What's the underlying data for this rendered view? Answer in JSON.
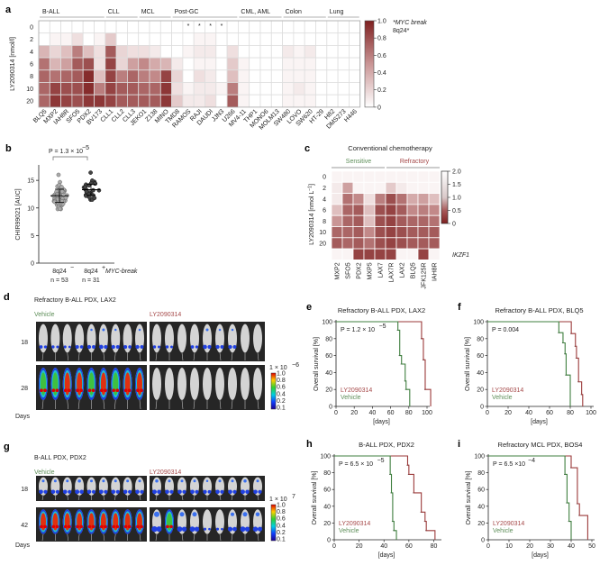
{
  "panel_labels": {
    "a": "a",
    "b": "b",
    "c": "c",
    "d": "d",
    "e": "e",
    "f": "f",
    "g": "g",
    "h": "h",
    "i": "i"
  },
  "colors": {
    "heat_high": "#7e2020",
    "drug": "#9b3a3a",
    "vehicle": "#3f7f3f",
    "sensitive_label": "#5f8f5a",
    "refractory_label": "#a54848"
  },
  "chart_data": [
    {
      "type": "heatmap",
      "ylabel": "LY2090314 [nmol/l]",
      "rows": [
        "0",
        "2",
        "4",
        "6",
        "8",
        "10",
        "20"
      ],
      "columns": [
        "BLQ5",
        "MXP2",
        "IAH8R",
        "SFO5",
        "PDX2",
        "BV173",
        "CLL1",
        "CLL2",
        "CLL3",
        "JEKO1",
        "Z138",
        "MINO",
        "TMD8",
        "RAMOS",
        "RAJI",
        "DAUDI",
        "JJN3",
        "U266",
        "MV4-11",
        "THP1",
        "MONO6",
        "MOLM13",
        "SW480",
        "LOVO",
        "SW620",
        "HT-29",
        "H82",
        "DMS273",
        "H446"
      ],
      "groups": [
        {
          "name": "B-ALL",
          "start": 0,
          "end": 5
        },
        {
          "name": "CLL",
          "start": 6,
          "end": 8
        },
        {
          "name": "MCL",
          "start": 9,
          "end": 11
        },
        {
          "name": "Post-GC",
          "start": 12,
          "end": 17
        },
        {
          "name": "CML, AML",
          "start": 18,
          "end": 21
        },
        {
          "name": "Colon",
          "start": 22,
          "end": 25
        },
        {
          "name": "Lung",
          "start": 26,
          "end": 28
        }
      ],
      "star_marker": "*",
      "starred_columns": [
        13,
        14,
        15,
        16
      ],
      "star_note": "*MYC break",
      "star_note2": "8q24*",
      "colorbar": {
        "min": 0,
        "max": 1,
        "ticks": [
          "1.0",
          "0.8",
          "0.6",
          "0.4",
          "0.2",
          "0"
        ]
      },
      "values_by_column": [
        [
          0,
          0,
          0.35,
          0.65,
          0.7,
          0.7,
          0.7
        ],
        [
          0,
          0.05,
          0.2,
          0.35,
          0.65,
          0.85,
          0.9
        ],
        [
          0,
          0.05,
          0.3,
          0.45,
          0.7,
          0.8,
          0.85
        ],
        [
          0,
          0.15,
          0.6,
          0.75,
          0.75,
          0.8,
          0.8
        ],
        [
          0,
          0,
          0.3,
          0.8,
          0.95,
          0.95,
          0.9
        ],
        [
          0,
          0.05,
          0.15,
          0.15,
          0.3,
          0.6,
          0.9
        ],
        [
          0,
          0.25,
          0.75,
          0.85,
          0.85,
          0.85,
          0.85
        ],
        [
          0,
          0,
          0.2,
          0.2,
          0.6,
          0.75,
          0.75
        ],
        [
          0,
          0,
          0.15,
          0.45,
          0.7,
          0.75,
          0.75
        ],
        [
          0,
          0,
          0.15,
          0.55,
          0.6,
          0.7,
          0.75
        ],
        [
          0,
          0,
          0.1,
          0.4,
          0.55,
          0.7,
          0.75
        ],
        [
          0,
          0,
          0,
          0.35,
          0.85,
          0.9,
          0.9
        ],
        [
          0,
          0,
          0,
          0.1,
          0.2,
          0.15,
          0.25
        ],
        [
          0,
          0,
          0.05,
          0,
          0,
          0.05,
          0.1
        ],
        [
          0,
          0.05,
          0.1,
          0.05,
          0.15,
          0.1,
          0.1
        ],
        [
          0,
          0.05,
          0.1,
          0.05,
          0.1,
          0.1,
          0.15
        ],
        [
          0,
          0,
          0,
          0,
          0,
          0.05,
          0
        ],
        [
          0,
          0,
          0.15,
          0.25,
          0.3,
          0.6,
          0.75
        ],
        [
          0,
          0,
          0,
          0.05,
          0.05,
          0.05,
          0.05
        ],
        [
          0,
          0,
          0,
          0,
          0,
          0,
          0
        ],
        [
          0,
          0,
          0,
          0,
          0,
          0,
          0
        ],
        [
          0,
          0,
          0,
          0,
          0,
          0,
          0
        ],
        [
          0,
          0,
          0.1,
          0.05,
          0.05,
          0.05,
          0.05
        ],
        [
          0,
          0,
          0.05,
          0.05,
          0.05,
          0.1,
          0.05
        ],
        [
          0,
          0,
          0.1,
          0.05,
          0.05,
          0.05,
          0.05
        ],
        [
          0,
          0,
          0,
          0,
          0,
          0,
          0
        ],
        [
          0,
          0,
          0,
          0,
          0,
          0,
          0
        ],
        [
          0,
          0,
          0,
          0,
          0,
          0,
          0
        ],
        [
          0,
          0,
          0,
          0,
          0,
          0,
          0
        ]
      ]
    },
    {
      "type": "scatter",
      "ylabel": "CHIR99021 [AUC]",
      "ylim": [
        0,
        17.8
      ],
      "yticks": [
        "0",
        "5",
        "10",
        "15"
      ],
      "pvalue": "P = 1.3 × 10",
      "pvalue_exp": "−5",
      "xlabel_suffix": "MYC-break",
      "groups": [
        {
          "label": "8q24",
          "sup": "−",
          "n_label": "n = 53",
          "n": 53,
          "mean": 12.2,
          "sd": 1.2,
          "min": 9.8,
          "max": 16.0
        },
        {
          "label": "8q24",
          "sup": "+",
          "n_label": "n = 31",
          "n": 31,
          "mean": 13.3,
          "sd": 1.0,
          "min": 11.5,
          "max": 16.4
        }
      ]
    },
    {
      "type": "heatmap",
      "title": "Conventional chemotherapy",
      "group_labels": [
        "Sensitive",
        "Refractory"
      ],
      "ylabel": "LY2090314 [nmol L",
      "ylabel_sup": "−1",
      "ylabel_end": "]",
      "rows": [
        "0",
        "2",
        "4",
        "6",
        "8",
        "10",
        "20",
        ""
      ],
      "row_extra_label": "IKZF1",
      "columns": [
        "MXP2",
        "SFO5",
        "PDX2",
        "MXP5",
        "LAX7",
        "LAX7R",
        "LAX2",
        "BLQ5",
        "JFK125R",
        "IAH8R"
      ],
      "colorbar": {
        "min": 0,
        "max": 2,
        "ticks": [
          "2.0",
          "1.5",
          "1.0",
          "0.5",
          "0"
        ]
      },
      "values_by_column": [
        [
          1.9,
          1.8,
          1.8,
          1.4,
          1.0,
          0.6,
          0.5,
          1.9
        ],
        [
          1.9,
          1.1,
          0.7,
          0.6,
          0.6,
          0.6,
          0.6,
          1.9
        ],
        [
          1.9,
          1.9,
          0.9,
          0.5,
          0.5,
          0.5,
          0.5,
          0.3
        ],
        [
          1.9,
          1.9,
          1.7,
          1.4,
          1.4,
          0.9,
          0.7,
          0.3
        ],
        [
          1.9,
          1.9,
          0.8,
          0.4,
          0.4,
          0.4,
          0.4,
          0.3
        ],
        [
          1.9,
          1.5,
          0.4,
          0.3,
          0.3,
          0.3,
          0.3,
          0.3
        ],
        [
          1.9,
          1.8,
          0.7,
          0.5,
          0.5,
          0.4,
          0.4,
          1.9
        ],
        [
          1.9,
          1.9,
          1.2,
          0.9,
          0.6,
          0.5,
          0.5,
          1.9
        ],
        [
          1.9,
          1.9,
          1.1,
          0.8,
          0.6,
          0.5,
          0.5,
          0.3
        ],
        [
          1.9,
          1.9,
          1.4,
          0.9,
          0.7,
          0.5,
          0.5,
          1.9
        ]
      ]
    },
    {
      "panel": "e",
      "type": "line",
      "title": "Refractory B-ALL PDX, LAX2",
      "ylabel": "Overall survival [%]",
      "xlabel": "[days]",
      "pvalue": "P = 1.2 × 10",
      "pvalue_exp": "−5",
      "xlim": [
        0,
        100
      ],
      "ylim": [
        0,
        100
      ],
      "xticks": [
        "0",
        "20",
        "40",
        "60",
        "80",
        "100"
      ],
      "yticks": [
        "0",
        "20",
        "40",
        "60",
        "80",
        "100"
      ],
      "series": [
        {
          "name": "LY2090314",
          "steps": [
            [
              0,
              100
            ],
            [
              94,
              80
            ],
            [
              96,
              55
            ],
            [
              98,
              20
            ],
            [
              104,
              0
            ]
          ]
        },
        {
          "name": "Vehicle",
          "steps": [
            [
              0,
              100
            ],
            [
              68,
              90
            ],
            [
              70,
              60
            ],
            [
              72,
              50
            ],
            [
              76,
              30
            ],
            [
              77,
              20
            ],
            [
              81,
              0
            ]
          ]
        }
      ]
    },
    {
      "panel": "f",
      "type": "line",
      "title": "Refractory B-ALL PDX, BLQ5",
      "ylabel": "Overall survival [%]",
      "xlabel": "[days]",
      "pvalue": "P = 0.004",
      "pvalue_exp": "",
      "xlim": [
        0,
        100
      ],
      "ylim": [
        0,
        100
      ],
      "xticks": [
        "0",
        "20",
        "40",
        "60",
        "80",
        "100"
      ],
      "yticks": [
        "0",
        "20",
        "40",
        "60",
        "80",
        "100"
      ],
      "series": [
        {
          "name": "LY2090314",
          "steps": [
            [
              0,
              100
            ],
            [
              81,
              86
            ],
            [
              85,
              71
            ],
            [
              86,
              57
            ],
            [
              88,
              29
            ],
            [
              91,
              14
            ],
            [
              92,
              0
            ]
          ]
        },
        {
          "name": "Vehicle",
          "steps": [
            [
              0,
              100
            ],
            [
              69,
              87
            ],
            [
              73,
              75
            ],
            [
              75,
              62
            ],
            [
              76,
              37
            ],
            [
              80,
              0
            ]
          ]
        }
      ]
    },
    {
      "panel": "h",
      "type": "line",
      "title": "B-ALL PDX, PDX2",
      "ylabel": "Overall survival [%]",
      "xlabel": "[days]",
      "pvalue": "P = 6.5 × 10",
      "pvalue_exp": "−5",
      "xlim": [
        0,
        84
      ],
      "ylim": [
        0,
        100
      ],
      "xticks": [
        "0",
        "20",
        "40",
        "60",
        "80"
      ],
      "yticks": [
        "0",
        "20",
        "40",
        "60",
        "80",
        "100"
      ],
      "series": [
        {
          "name": "LY2090314",
          "steps": [
            [
              0,
              100
            ],
            [
              59,
              89
            ],
            [
              60,
              78
            ],
            [
              64,
              56
            ],
            [
              70,
              33
            ],
            [
              73,
              22
            ],
            [
              74,
              11
            ],
            [
              81,
              0
            ]
          ]
        },
        {
          "name": "Vehicle",
          "steps": [
            [
              0,
              100
            ],
            [
              45,
              78
            ],
            [
              46,
              56
            ],
            [
              47,
              22
            ],
            [
              48,
              11
            ],
            [
              50,
              0
            ]
          ]
        }
      ]
    },
    {
      "panel": "i",
      "type": "line",
      "title": "Refractory MCL PDX, BOS4",
      "ylabel": "Overall survival [%]",
      "xlabel": "[days]",
      "pvalue": "P = 6.5 ×10",
      "pvalue_exp": "−4",
      "xlim": [
        0,
        50
      ],
      "ylim": [
        0,
        100
      ],
      "xticks": [
        "0",
        "10",
        "20",
        "30",
        "40",
        "50"
      ],
      "yticks": [
        "0",
        "20",
        "40",
        "60",
        "80",
        "100"
      ],
      "series": [
        {
          "name": "LY2090314",
          "steps": [
            [
              0,
              100
            ],
            [
              40,
              86
            ],
            [
              43,
              43
            ],
            [
              44,
              29
            ],
            [
              48,
              0
            ]
          ]
        },
        {
          "name": "Vehicle",
          "steps": [
            [
              0,
              100
            ],
            [
              37,
              78
            ],
            [
              38,
              44
            ],
            [
              39,
              22
            ],
            [
              40,
              0
            ]
          ]
        }
      ]
    }
  ],
  "imaging": {
    "d": {
      "title": "Refractory B-ALL PDX, LAX2",
      "vehicle": "Vehicle",
      "drug": "LY2090314",
      "days": [
        "18",
        "28"
      ],
      "days_label": "Days",
      "scale": "1 × 10",
      "scale_exp": "−6",
      "scale_ticks": [
        "1.0",
        "0.8",
        "0.6",
        "0.4",
        "0.2",
        "0.1"
      ],
      "signal": {
        "vehicle": [
          [
            0.15,
            0.1,
            0.05,
            0.2,
            0.25,
            0.3,
            0.25,
            0.2,
            0.25
          ],
          [
            0.9,
            0.9,
            0.95,
            0.95,
            0.9,
            0.95,
            0.9,
            0.95,
            0.95
          ]
        ],
        "drug": [
          [
            0.1,
            0.1,
            0,
            0.15,
            0.3,
            0.25,
            0.25,
            0,
            0
          ],
          [
            0,
            0,
            0,
            0,
            0,
            0,
            0,
            0,
            0
          ]
        ]
      }
    },
    "g": {
      "title": "B-ALL PDX, PDX2",
      "vehicle": "Vehicle",
      "drug": "LY2090314",
      "days": [
        "18",
        "42"
      ],
      "days_label": "Days",
      "scale": "1 × 10",
      "scale_exp": "7",
      "scale_ticks": [
        "1.0",
        "0.8",
        "0.6",
        "0.4",
        "0.2",
        "0.1"
      ],
      "signal": {
        "vehicle": [
          [
            0.3,
            0.3,
            0.3,
            0.35,
            0.3,
            0.3,
            0.3,
            0.3,
            0.3
          ],
          [
            1,
            1,
            0.95,
            1,
            1,
            0.95,
            0.95,
            1,
            1
          ]
        ],
        "drug": [
          [
            0.35,
            0.3,
            0.3,
            0.3,
            0.25,
            0.3,
            0.3,
            0.35,
            0.3
          ],
          [
            0.6,
            0.65,
            0.5,
            0.5,
            0.05,
            0.05,
            0.4,
            0.5,
            0.45
          ]
        ]
      }
    }
  }
}
